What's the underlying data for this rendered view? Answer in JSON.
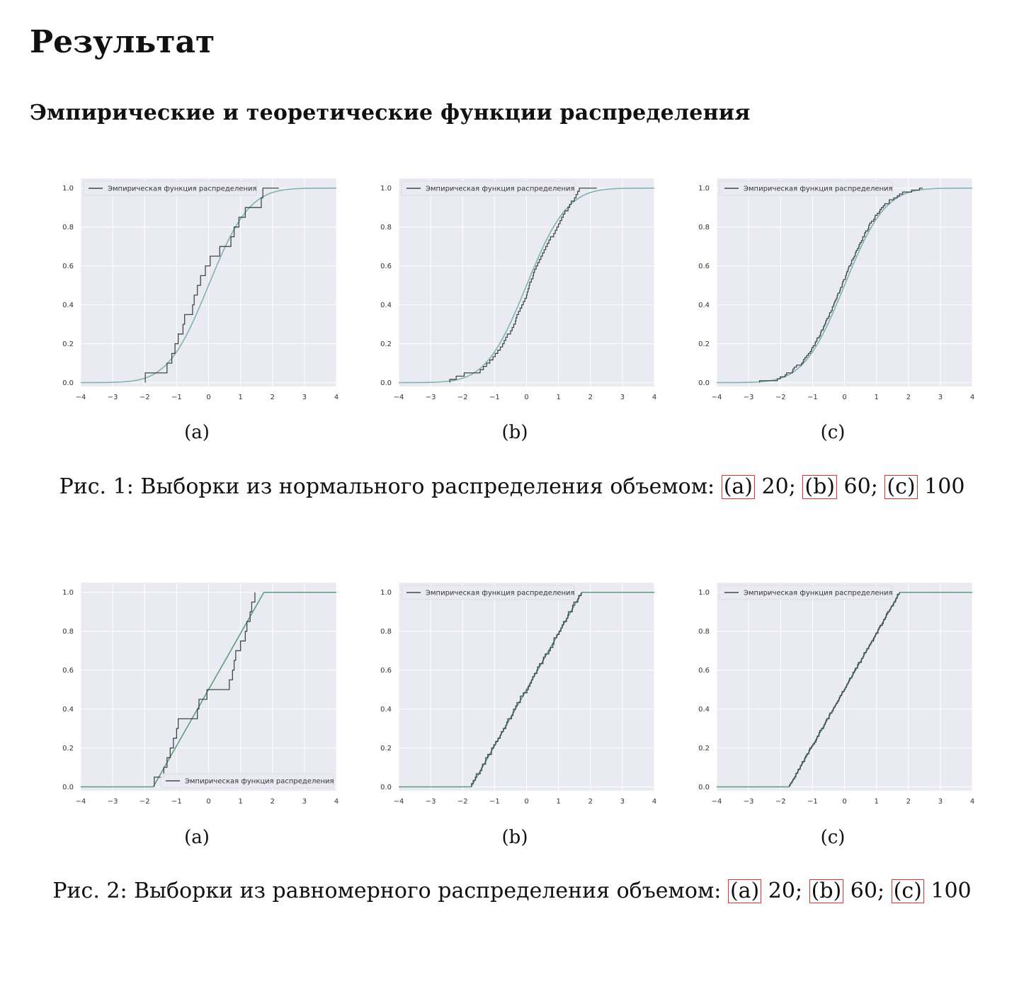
{
  "page": {
    "title": "Результат",
    "subtitle": "Эмпирические и теоретические функции распределения"
  },
  "figures": [
    {
      "caption_prefix": "Рис. 1: Выборки из нормального распределения объемом:",
      "refs": [
        {
          "label": "(a)",
          "value": " 20;"
        },
        {
          "label": "(b)",
          "value": " 60;"
        },
        {
          "label": "(c)",
          "value": " 100"
        }
      ],
      "panels": [
        {
          "sublabel": "(a)"
        },
        {
          "sublabel": "(b)"
        },
        {
          "sublabel": "(c)"
        }
      ]
    },
    {
      "caption_prefix": "Рис. 2: Выборки из равномерного распределения объемом:",
      "refs": [
        {
          "label": "(a)",
          "value": " 20;"
        },
        {
          "label": "(b)",
          "value": " 60;"
        },
        {
          "label": "(c)",
          "value": " 100"
        }
      ],
      "panels": [
        {
          "sublabel": "(a)"
        },
        {
          "sublabel": "(b)"
        },
        {
          "sublabel": "(c)"
        }
      ]
    }
  ],
  "chart_data": [
    {
      "type": "line",
      "id": "normal-20",
      "distribution": "normal",
      "n": 20,
      "legend_label": "Эмпирическая функция распределения",
      "legend_position": "upper-left",
      "xlim": [
        -4,
        4
      ],
      "ylim": [
        0,
        1
      ],
      "xticks": [
        "−4",
        "−3",
        "−2",
        "−1",
        "0",
        "1",
        "2",
        "3",
        "4"
      ],
      "yticks": [
        "0.0",
        "0.2",
        "0.4",
        "0.6",
        "0.8",
        "1.0"
      ],
      "grid": true,
      "empirical_colors": "#3d4a48",
      "theoretical_color": "#7fb3b0",
      "sample": [
        -1.98,
        -1.3,
        -1.15,
        -1.05,
        -0.95,
        -0.8,
        -0.75,
        -0.5,
        -0.45,
        -0.35,
        -0.25,
        -0.1,
        0.05,
        0.35,
        0.7,
        0.8,
        0.95,
        1.15,
        1.65,
        1.7
      ],
      "empirical_end": 2.2
    },
    {
      "type": "line",
      "id": "normal-60",
      "distribution": "normal",
      "n": 60,
      "legend_label": "Эмпирическая функция распределения",
      "legend_position": "upper-left",
      "xlim": [
        -4,
        4
      ],
      "ylim": [
        0,
        1
      ],
      "xticks": [
        "−4",
        "−3",
        "−2",
        "−1",
        "0",
        "1",
        "2",
        "3",
        "4"
      ],
      "yticks": [
        "0.0",
        "0.2",
        "0.4",
        "0.6",
        "0.8",
        "1.0"
      ],
      "grid": true,
      "empirical_colors": "#3d4a48",
      "theoretical_color": "#7fb3b0",
      "sample": [
        -2.4,
        -2.2,
        -1.95,
        -1.45,
        -1.35,
        -1.25,
        -1.15,
        -1.05,
        -0.98,
        -0.9,
        -0.82,
        -0.75,
        -0.7,
        -0.65,
        -0.6,
        -0.5,
        -0.45,
        -0.4,
        -0.35,
        -0.33,
        -0.3,
        -0.25,
        -0.2,
        -0.15,
        -0.1,
        -0.05,
        0.0,
        0.02,
        0.05,
        0.08,
        0.1,
        0.15,
        0.2,
        0.22,
        0.25,
        0.3,
        0.35,
        0.4,
        0.45,
        0.5,
        0.55,
        0.6,
        0.65,
        0.7,
        0.75,
        0.85,
        0.9,
        0.95,
        1.0,
        1.05,
        1.1,
        1.15,
        1.2,
        1.3,
        1.35,
        1.4,
        1.5,
        1.55,
        1.6,
        1.65
      ],
      "empirical_end": 2.2
    },
    {
      "type": "line",
      "id": "normal-100",
      "distribution": "normal",
      "n": 100,
      "legend_label": "Эмпирическая функция распределения",
      "legend_position": "upper-left",
      "xlim": [
        -4,
        4
      ],
      "ylim": [
        0,
        1
      ],
      "xticks": [
        "−4",
        "−3",
        "−2",
        "−1",
        "0",
        "1",
        "2",
        "3",
        "4"
      ],
      "yticks": [
        "0.0",
        "0.2",
        "0.4",
        "0.6",
        "0.8",
        "1.0"
      ],
      "grid": true,
      "empirical_colors": "#3d4a48",
      "theoretical_color": "#7fb3b0",
      "sample_generator": "normal-quantiles-jittered",
      "seed": 7,
      "empirical_start": -2.8,
      "empirical_end": 2.45
    },
    {
      "type": "line",
      "id": "uniform-20",
      "distribution": "uniform",
      "n": 20,
      "legend_label": "Эмпирическая функция распределения",
      "legend_position": "lower-right",
      "xlim": [
        -4,
        4
      ],
      "ylim": [
        0,
        1
      ],
      "xticks": [
        "−4",
        "−3",
        "−2",
        "−1",
        "0",
        "1",
        "2",
        "3",
        "4"
      ],
      "yticks": [
        "0.0",
        "0.2",
        "0.4",
        "0.6",
        "0.8",
        "1.0"
      ],
      "grid": true,
      "uniform_range": [
        -1.732,
        1.732
      ],
      "empirical_colors": "#3d4a48",
      "theoretical_color": "#5a9e78",
      "sample": [
        -1.7,
        -1.4,
        -1.3,
        -1.2,
        -1.1,
        -1.0,
        -0.95,
        -0.35,
        -0.3,
        -0.05,
        0.65,
        0.75,
        0.8,
        0.85,
        1.0,
        1.15,
        1.2,
        1.3,
        1.35,
        1.45
      ]
    },
    {
      "type": "line",
      "id": "uniform-60",
      "distribution": "uniform",
      "n": 60,
      "legend_label": "Эмпирическая функция распределения",
      "legend_position": "upper-left",
      "xlim": [
        -4,
        4
      ],
      "ylim": [
        0,
        1
      ],
      "xticks": [
        "−4",
        "−3",
        "−2",
        "−1",
        "0",
        "1",
        "2",
        "3",
        "4"
      ],
      "yticks": [
        "0.0",
        "0.2",
        "0.4",
        "0.6",
        "0.8",
        "1.0"
      ],
      "grid": true,
      "uniform_range": [
        -1.732,
        1.732
      ],
      "empirical_colors": "#3d4a48",
      "theoretical_color": "#5a9e78",
      "sample_generator": "uniform-jittered",
      "seed": 11
    },
    {
      "type": "line",
      "id": "uniform-100",
      "distribution": "uniform",
      "n": 100,
      "legend_label": "Эмпирическая функция распределения",
      "legend_position": "upper-left",
      "xlim": [
        -4,
        4
      ],
      "ylim": [
        0,
        1
      ],
      "xticks": [
        "−4",
        "−3",
        "−2",
        "−1",
        "0",
        "1",
        "2",
        "3",
        "4"
      ],
      "yticks": [
        "0.0",
        "0.2",
        "0.4",
        "0.6",
        "0.8",
        "1.0"
      ],
      "grid": true,
      "uniform_range": [
        -1.732,
        1.732
      ],
      "empirical_colors": "#3d4a48",
      "theoretical_color": "#5a9e78",
      "sample_generator": "uniform-jittered",
      "seed": 23
    }
  ]
}
